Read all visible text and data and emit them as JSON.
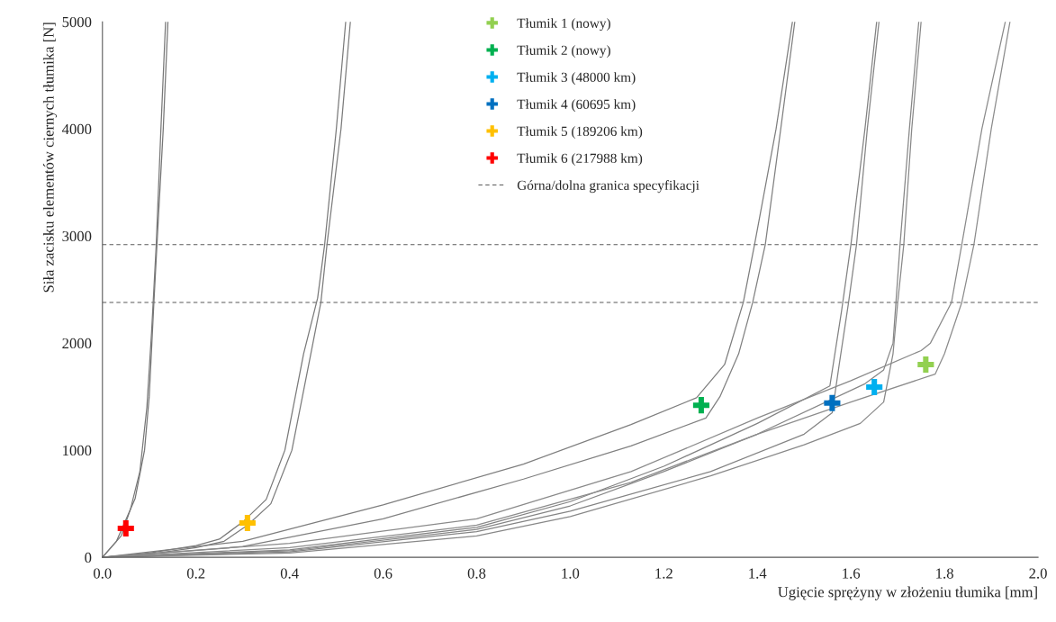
{
  "chart_data": {
    "type": "line",
    "xlabel": "Ugięcie sprężyny w złożeniu tłumika [mm]",
    "ylabel": "Siła zacisku elementów ciernych tłumika [N]",
    "xlim": [
      0,
      2.0
    ],
    "xticks": [
      {
        "value": 0,
        "label": "0.0"
      },
      0.2,
      0.4,
      0.6,
      0.8,
      {
        "value": 1.0,
        "label": "1.0"
      },
      1.2,
      1.4,
      1.6,
      1.8,
      {
        "value": 2.0,
        "label": "2.0"
      }
    ],
    "ylim": [
      0,
      5000
    ],
    "yticks": [
      0,
      1000,
      2000,
      3000,
      4000,
      5000
    ],
    "grid": false,
    "legend": "top",
    "line_style": "solid",
    "marker": "none",
    "series": [
      {
        "color": "#767676",
        "x": [
          0,
          0.03,
          0.07,
          0.09,
          0.1,
          0.11,
          0.12,
          0.13,
          0.14
        ],
        "values": [
          0,
          150,
          550,
          1000,
          1500,
          2380,
          3200,
          4000,
          5000
        ]
      },
      {
        "color": "#787878",
        "x": [
          0,
          0.04,
          0.06,
          0.08,
          0.095,
          0.105,
          0.115,
          0.125,
          0.135
        ],
        "values": [
          0,
          200,
          450,
          800,
          1400,
          2100,
          2920,
          4000,
          5000
        ]
      },
      {
        "color": "#7a7a7a",
        "x": [
          0,
          0.1,
          0.2,
          0.25,
          0.3,
          0.35,
          0.39,
          0.43,
          0.46,
          0.475,
          0.5,
          0.52
        ],
        "values": [
          0,
          40,
          110,
          170,
          330,
          540,
          1000,
          1900,
          2420,
          2920,
          4000,
          5000
        ]
      },
      {
        "color": "#7c7c7c",
        "x": [
          0,
          0.1,
          0.2,
          0.26,
          0.31,
          0.36,
          0.405,
          0.45,
          0.467,
          0.48,
          0.51,
          0.53
        ],
        "values": [
          0,
          30,
          90,
          150,
          300,
          500,
          1000,
          2000,
          2380,
          2920,
          4000,
          5000
        ]
      },
      {
        "color": "#7e7e7e",
        "x": [
          0,
          0.3,
          0.6,
          0.9,
          1.13,
          1.27,
          1.33,
          1.37,
          1.394,
          1.44,
          1.475
        ],
        "values": [
          0,
          150,
          490,
          870,
          1240,
          1490,
          1800,
          2380,
          2920,
          4000,
          5000
        ]
      },
      {
        "color": "#808080",
        "x": [
          0,
          0.3,
          0.6,
          0.9,
          1.13,
          1.29,
          1.32,
          1.36,
          1.39,
          1.417,
          1.45,
          1.48
        ],
        "values": [
          0,
          100,
          360,
          730,
          1040,
          1300,
          1500,
          1900,
          2380,
          2920,
          4000,
          5000
        ]
      },
      {
        "color": "#828282",
        "x": [
          0,
          0.4,
          0.8,
          1.0,
          1.2,
          1.4,
          1.555,
          1.58,
          1.6,
          1.63,
          1.655
        ],
        "values": [
          0,
          70,
          280,
          520,
          850,
          1250,
          1600,
          2300,
          2920,
          4000,
          5000
        ]
      },
      {
        "color": "#848484",
        "x": [
          0,
          0.4,
          0.8,
          1.0,
          1.3,
          1.5,
          1.56,
          1.575,
          1.595,
          1.612,
          1.635,
          1.66
        ],
        "values": [
          0,
          50,
          240,
          430,
          800,
          1150,
          1350,
          1800,
          2380,
          2920,
          4000,
          5000
        ]
      },
      {
        "color": "#868686",
        "x": [
          0,
          0.4,
          0.8,
          1.0,
          1.2,
          1.4,
          1.63,
          1.67,
          1.69,
          1.705,
          1.725,
          1.745
        ],
        "values": [
          0,
          60,
          260,
          480,
          800,
          1150,
          1620,
          1750,
          2000,
          2920,
          4000,
          5000
        ]
      },
      {
        "color": "#888888",
        "x": [
          0,
          0.4,
          0.8,
          1.0,
          1.3,
          1.5,
          1.62,
          1.67,
          1.69,
          1.7,
          1.713,
          1.73,
          1.75
        ],
        "values": [
          0,
          40,
          200,
          380,
          760,
          1050,
          1250,
          1450,
          1900,
          2380,
          2920,
          4000,
          5000
        ]
      },
      {
        "color": "#8a8a8a",
        "x": [
          0,
          0.4,
          0.8,
          1.13,
          1.4,
          1.6,
          1.75,
          1.77,
          1.815,
          1.837,
          1.88,
          1.93
        ],
        "values": [
          0,
          130,
          360,
          800,
          1300,
          1650,
          1930,
          2000,
          2380,
          2920,
          4000,
          5000
        ]
      },
      {
        "color": "#8c8c8c",
        "x": [
          0,
          0.4,
          0.8,
          1.13,
          1.4,
          1.6,
          1.78,
          1.8,
          1.837,
          1.863,
          1.9,
          1.94
        ],
        "values": [
          0,
          90,
          300,
          700,
          1150,
          1450,
          1710,
          1900,
          2380,
          2920,
          4000,
          5000
        ]
      },
      {
        "type": "scatter",
        "marker": "cross",
        "name": "Tłumik 1 (nowy)",
        "color": "#92d050",
        "x": [
          1.76
        ],
        "values": [
          1800
        ]
      },
      {
        "type": "scatter",
        "marker": "cross",
        "name": "Tłumik 2 (nowy)",
        "color": "#00b050",
        "x": [
          1.28
        ],
        "values": [
          1420
        ]
      },
      {
        "type": "scatter",
        "marker": "cross",
        "name": "Tłumik 3 (48000 km)",
        "color": "#00b0f0",
        "x": [
          1.65
        ],
        "values": [
          1590
        ]
      },
      {
        "type": "scatter",
        "marker": "cross",
        "name": "Tłumik 4 (60695 km)",
        "color": "#0070c0",
        "x": [
          1.56
        ],
        "values": [
          1440
        ]
      },
      {
        "type": "scatter",
        "marker": "cross",
        "name": "Tłumik 5 (189206 km)",
        "color": "#ffc000",
        "x": [
          0.31
        ],
        "values": [
          320
        ]
      },
      {
        "type": "scatter",
        "marker": "cross",
        "name": "Tłumik 6 (217988 km)",
        "color": "#ff0000",
        "x": [
          0.05
        ],
        "values": [
          270
        ]
      }
    ],
    "ref_lines": [
      {
        "axis": "y",
        "value": 2920,
        "label": "Górna/dolna granica specyfikacji",
        "color": "#595959",
        "line_style": "dashed"
      },
      {
        "axis": "y",
        "value": 2380,
        "color": "#595959",
        "line_style": "dashed"
      }
    ]
  }
}
